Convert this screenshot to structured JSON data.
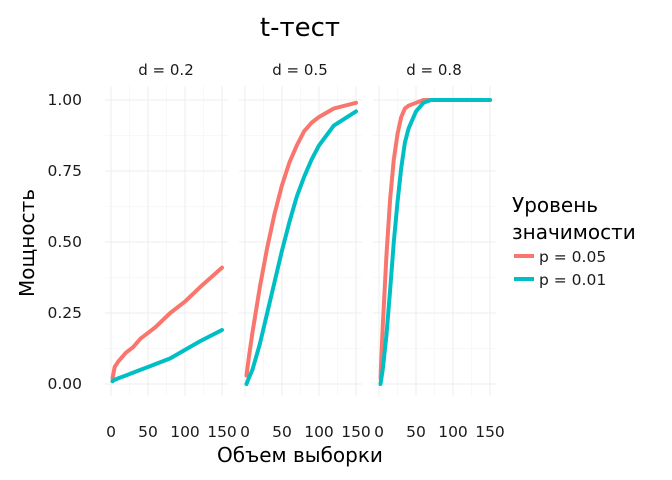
{
  "chart_data": {
    "type": "line",
    "title": "t-тест",
    "xlabel": "Объем выборки",
    "ylabel": "Мощность",
    "xlim": [
      0,
      150
    ],
    "ylim": [
      0,
      1
    ],
    "x_ticks": [
      "0",
      "50",
      "100",
      "150"
    ],
    "y_ticks": [
      "0.00",
      "0.25",
      "0.50",
      "0.75",
      "1.00"
    ],
    "grid": true,
    "legend": {
      "title_lines": [
        "Уровень",
        "значимости"
      ],
      "placement": "right"
    },
    "series": [
      {
        "name": "p = 0.05",
        "color": "#F8766D"
      },
      {
        "name": "p = 0.01",
        "color": "#00BFC4"
      }
    ],
    "panels": [
      {
        "label": "d = 0.2",
        "x": [
          2,
          5,
          10,
          20,
          30,
          40,
          50,
          60,
          80,
          100,
          120,
          150
        ],
        "series": [
          {
            "name": "p = 0.05",
            "values": [
              0.02,
              0.06,
              0.08,
              0.11,
              0.13,
              0.16,
              0.18,
              0.2,
              0.25,
              0.29,
              0.34,
              0.41
            ]
          },
          {
            "name": "p = 0.01",
            "values": [
              0.01,
              0.015,
              0.02,
              0.03,
              0.04,
              0.05,
              0.06,
              0.07,
              0.09,
              0.12,
              0.15,
              0.19
            ]
          }
        ]
      },
      {
        "label": "d = 0.5",
        "x": [
          2,
          5,
          10,
          20,
          30,
          40,
          50,
          60,
          70,
          80,
          90,
          100,
          120,
          150
        ],
        "series": [
          {
            "name": "p = 0.05",
            "values": [
              0.03,
              0.09,
              0.18,
              0.34,
              0.48,
              0.6,
              0.7,
              0.78,
              0.84,
              0.89,
              0.92,
              0.94,
              0.97,
              0.99
            ]
          },
          {
            "name": "p = 0.01",
            "values": [
              0.0,
              0.02,
              0.05,
              0.14,
              0.25,
              0.36,
              0.47,
              0.57,
              0.66,
              0.73,
              0.79,
              0.84,
              0.91,
              0.96
            ]
          }
        ]
      },
      {
        "label": "d = 0.8",
        "x": [
          2,
          5,
          10,
          15,
          20,
          25,
          30,
          35,
          40,
          50,
          60,
          70,
          80,
          100,
          150
        ],
        "series": [
          {
            "name": "p = 0.05",
            "values": [
              0.02,
              0.2,
              0.45,
              0.65,
              0.79,
              0.88,
              0.94,
              0.97,
              0.98,
              0.99,
              1.0,
              1.0,
              1.0,
              1.0,
              1.0
            ]
          },
          {
            "name": "p = 0.01",
            "values": [
              0.0,
              0.05,
              0.17,
              0.33,
              0.5,
              0.64,
              0.76,
              0.85,
              0.9,
              0.96,
              0.99,
              1.0,
              1.0,
              1.0,
              1.0
            ]
          }
        ]
      }
    ]
  }
}
